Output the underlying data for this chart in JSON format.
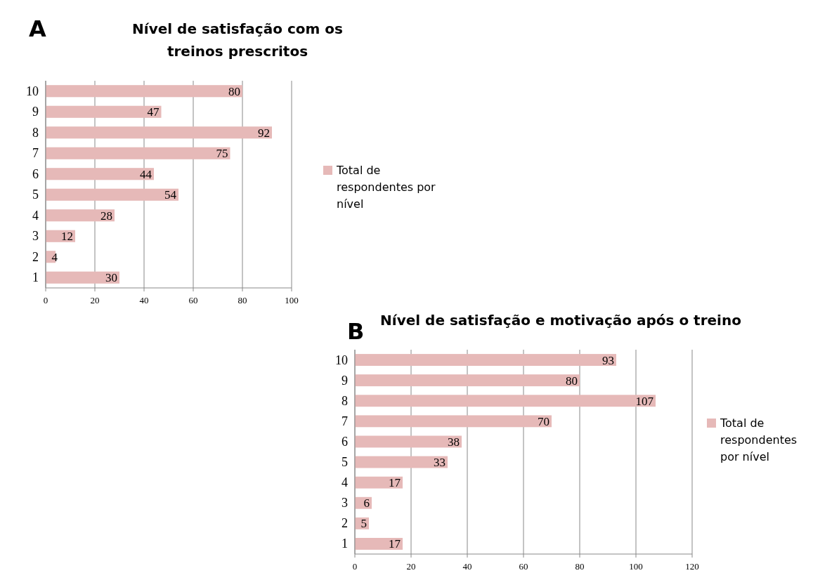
{
  "chart_data": [
    {
      "type": "bar",
      "orientation": "horizontal",
      "title": "Nível de satisfação com os treinos prescritos",
      "annotations": [
        "A"
      ],
      "categories": [
        "10",
        "9",
        "8",
        "7",
        "6",
        "5",
        "4",
        "3",
        "2",
        "1"
      ],
      "series": [
        {
          "name": "Total de respondentes por nível",
          "color": "#e6b9b8",
          "values": [
            80,
            47,
            92,
            75,
            44,
            54,
            28,
            12,
            4,
            30
          ]
        }
      ],
      "xlim": [
        0,
        100
      ],
      "xticks": [
        0,
        20,
        40,
        60,
        80,
        100
      ],
      "grid": "x",
      "legend": "right",
      "data_labels": true
    },
    {
      "type": "bar",
      "orientation": "horizontal",
      "title": "Nível de satisfação e motivação após o treino",
      "annotations": [
        "B"
      ],
      "categories": [
        "10",
        "9",
        "8",
        "7",
        "6",
        "5",
        "4",
        "3",
        "2",
        "1"
      ],
      "series": [
        {
          "name": "Total de respondentes por nível",
          "color": "#e6b9b8",
          "values": [
            93,
            80,
            107,
            70,
            38,
            33,
            17,
            6,
            5,
            17
          ]
        }
      ],
      "xlim": [
        0,
        120
      ],
      "xticks": [
        0,
        20,
        40,
        60,
        80,
        100,
        120
      ],
      "grid": "x",
      "legend": "right",
      "data_labels": true
    }
  ]
}
